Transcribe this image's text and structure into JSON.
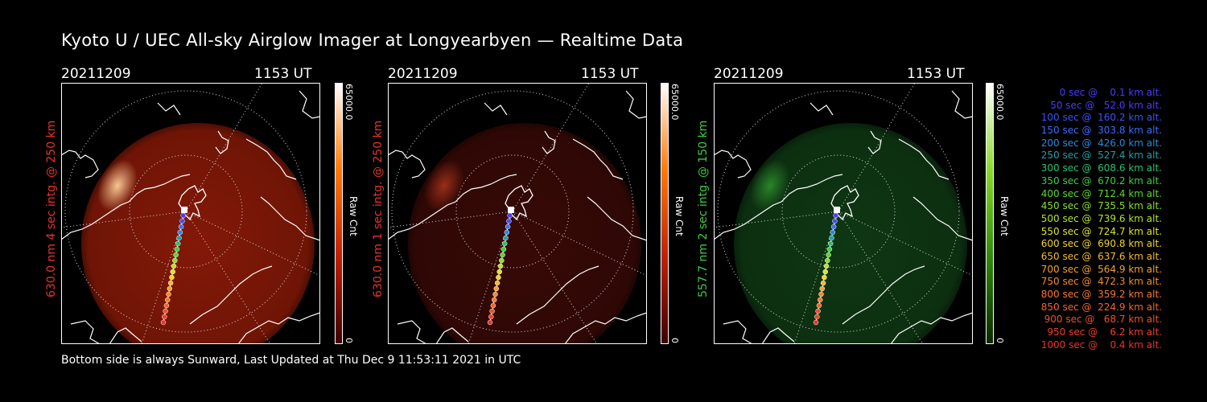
{
  "title": "Kyoto U / UEC All-sky Airglow Imager at Longyearbyen — Realtime Data",
  "footer": "Bottom side is always Sunward, Last Updated at Thu Dec  9 11:53:11 2021 in UTC",
  "panels": [
    {
      "date": "20211209",
      "time": "1153 UT",
      "side_label": "630.0 nm 4 sec intg. @ 250 km",
      "label_color": "#e8342a",
      "cbar_max": "65000.0",
      "cbar_label": "Raw Cnt",
      "cbar_min": "0",
      "cbar_gradient": [
        "#ffffff",
        "#ff7a00",
        "#c02000",
        "#400000"
      ],
      "glow_color": "#8a1a08",
      "glow_opacity": 0.95,
      "aurora_color": "#ffcf9a"
    },
    {
      "date": "20211209",
      "time": "1153 UT",
      "side_label": "630.0 nm 1 sec intg. @ 250 km",
      "label_color": "#e8342a",
      "cbar_max": "65000.0",
      "cbar_label": "Raw Cnt",
      "cbar_min": "0",
      "cbar_gradient": [
        "#ffffff",
        "#ff7a00",
        "#c02000",
        "#400000"
      ],
      "glow_color": "#3a0a06",
      "glow_opacity": 0.95,
      "aurora_color": "#a0301a"
    },
    {
      "date": "20211209",
      "time": "1153 UT",
      "side_label": "557.7 nm 2 sec intg. @ 150 km",
      "label_color": "#3ecf3e",
      "cbar_max": "65000.0",
      "cbar_label": "Raw Cnt",
      "cbar_min": "0",
      "cbar_gradient": [
        "#ffffff",
        "#8ad82a",
        "#2e8a0a",
        "#0a2a00"
      ],
      "glow_color": "#0f3a14",
      "glow_opacity": 0.95,
      "aurora_color": "#2a8a2a"
    }
  ],
  "legend": [
    {
      "text": "   0 sec @    0.1 km alt.",
      "color": "#4a3aff"
    },
    {
      "text": "  50 sec @   52.0 km alt.",
      "color": "#4a3aff"
    },
    {
      "text": " 100 sec @  160.2 km alt.",
      "color": "#3a52ff"
    },
    {
      "text": " 150 sec @  303.8 km alt.",
      "color": "#3a6cff"
    },
    {
      "text": " 200 sec @  426.0 km alt.",
      "color": "#2a88e0"
    },
    {
      "text": " 250 sec @  527.4 km alt.",
      "color": "#20a0a8"
    },
    {
      "text": " 300 sec @  608.6 km alt.",
      "color": "#2ac070"
    },
    {
      "text": " 350 sec @  670.2 km alt.",
      "color": "#38d040"
    },
    {
      "text": " 400 sec @  712.4 km alt.",
      "color": "#5ad82a"
    },
    {
      "text": " 450 sec @  735.5 km alt.",
      "color": "#8ade2a"
    },
    {
      "text": " 500 sec @  739.6 km alt.",
      "color": "#b6e22a"
    },
    {
      "text": " 550 sec @  724.7 km alt.",
      "color": "#dee22a"
    },
    {
      "text": " 600 sec @  690.8 km alt.",
      "color": "#f2d42a"
    },
    {
      "text": " 650 sec @  637.6 km alt.",
      "color": "#f6b82a"
    },
    {
      "text": " 700 sec @  564.9 km alt.",
      "color": "#f6a02a"
    },
    {
      "text": " 750 sec @  472.3 km alt.",
      "color": "#f68a2a"
    },
    {
      "text": " 800 sec @  359.2 km alt.",
      "color": "#f6782a"
    },
    {
      "text": " 850 sec @  224.9 km alt.",
      "color": "#f4642a"
    },
    {
      "text": " 900 sec @   68.7 km alt.",
      "color": "#f0502a"
    },
    {
      "text": " 950 sec @    6.2 km alt.",
      "color": "#ee402a"
    },
    {
      "text": "1000 sec @    0.4 km alt.",
      "color": "#ea342a"
    }
  ]
}
